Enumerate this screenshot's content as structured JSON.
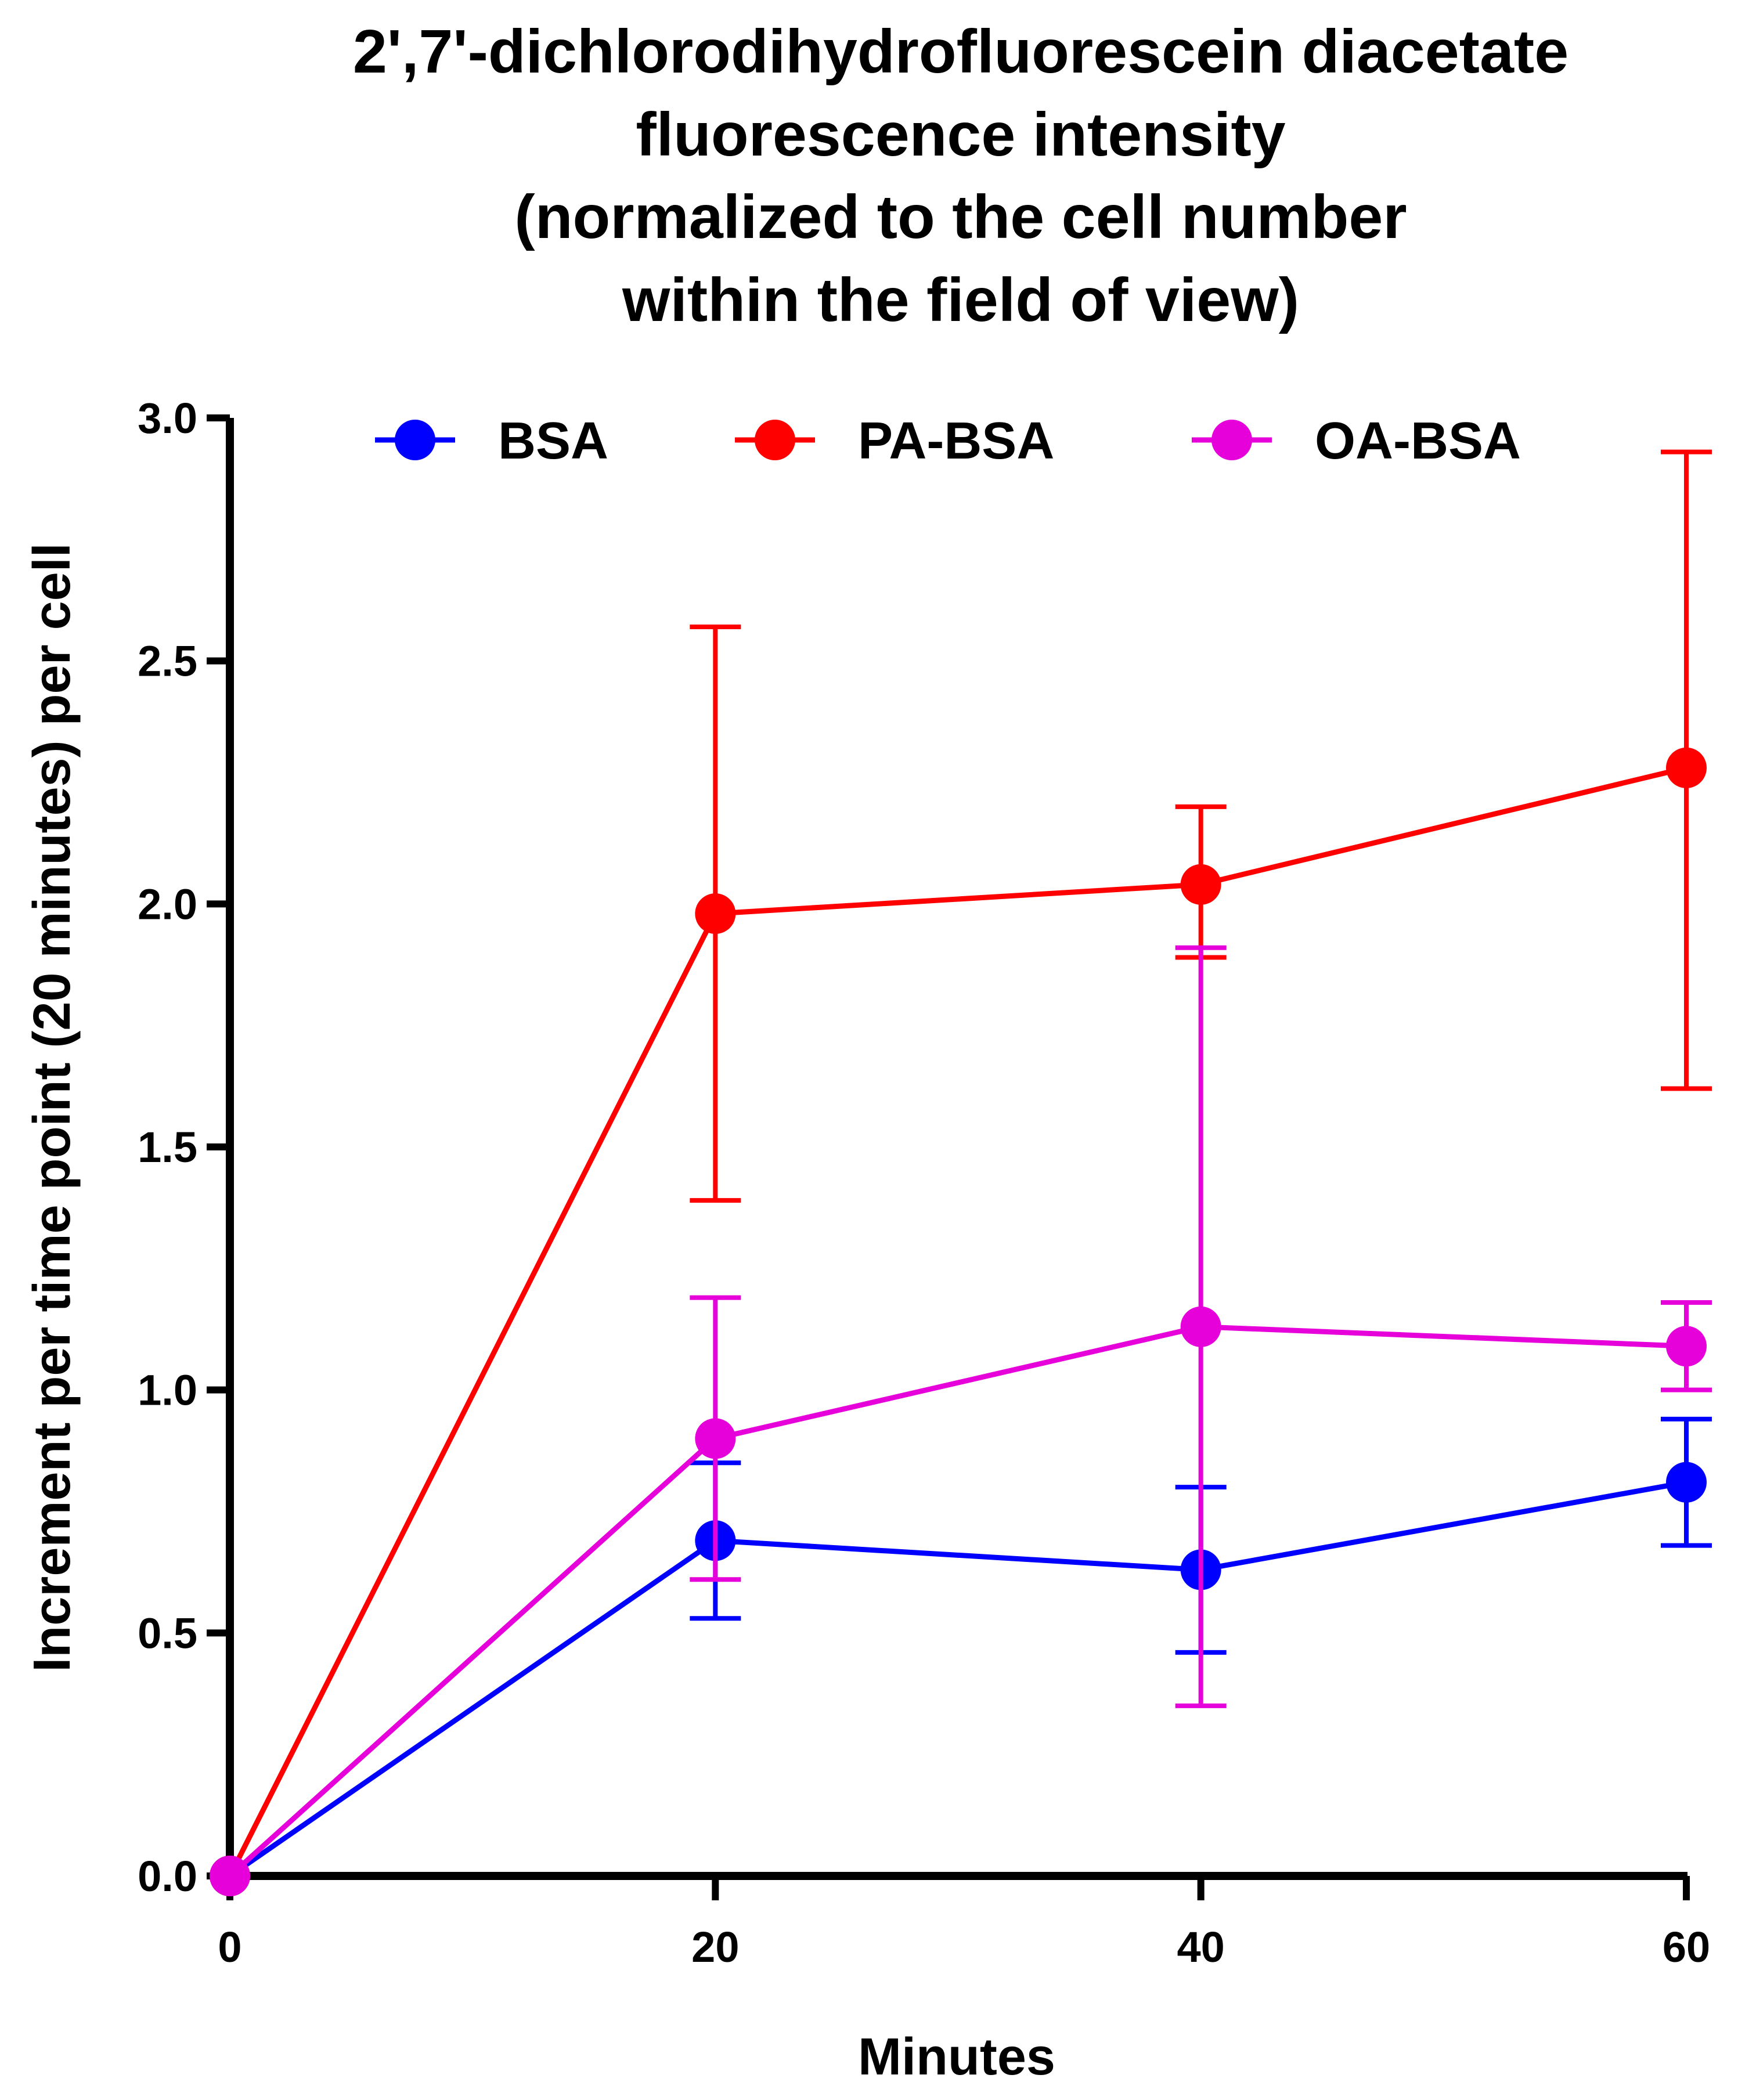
{
  "chart_data": {
    "type": "line",
    "title_lines": [
      "2',7'-dichlorodihydrofluorescein diacetate",
      "fluorescence intensity",
      "(normalized to the cell number",
      "within the field of view)"
    ],
    "xlabel": "Minutes",
    "ylabel": "Increment per time point (20 minutes) per cell",
    "x": [
      0,
      20,
      40,
      60
    ],
    "xlim": [
      0,
      60
    ],
    "ylim": [
      0,
      3.0
    ],
    "x_ticks": [
      "0",
      "20",
      "40",
      "60"
    ],
    "y_ticks": [
      "0.0",
      "0.5",
      "1.0",
      "1.5",
      "2.0",
      "2.5",
      "3.0"
    ],
    "legend_position": "top-center",
    "series": [
      {
        "name": "BSA",
        "color": "#0000ff",
        "values": [
          0.0,
          0.69,
          0.63,
          0.81
        ],
        "error_upper": [
          0.0,
          0.85,
          0.8,
          0.94
        ],
        "error_lower": [
          0.0,
          0.53,
          0.46,
          0.68
        ]
      },
      {
        "name": "PA-BSA",
        "color": "#ff0000",
        "values": [
          0.0,
          1.98,
          2.04,
          2.28
        ],
        "error_upper": [
          0.0,
          2.57,
          2.2,
          2.93
        ],
        "error_lower": [
          0.0,
          1.39,
          1.89,
          1.62
        ]
      },
      {
        "name": "OA-BSA",
        "color": "#e600d9",
        "values": [
          0.0,
          0.9,
          1.13,
          1.09
        ],
        "error_upper": [
          0.0,
          1.19,
          1.91,
          1.18
        ],
        "error_lower": [
          0.0,
          0.61,
          0.35,
          1.0
        ]
      }
    ]
  }
}
